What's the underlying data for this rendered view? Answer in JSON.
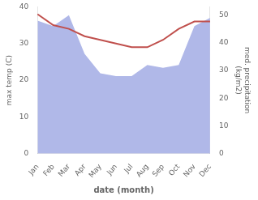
{
  "chart_data": {
    "type": "line",
    "categories": [
      "Jan",
      "Feb",
      "Mar",
      "Apr",
      "May",
      "Jun",
      "Jul",
      "Aug",
      "Sep",
      "Oct",
      "Nov",
      "Dec"
    ],
    "series": [
      {
        "type": "area",
        "color": "#b0b8e8",
        "axis": "y2",
        "values": [
          48,
          46,
          50,
          36,
          29,
          28,
          28,
          32,
          31,
          32,
          46,
          49
        ]
      },
      {
        "type": "line",
        "color": "#c0504d",
        "values": [
          38,
          35,
          34,
          32,
          31,
          30,
          29,
          29,
          31,
          34,
          36,
          36
        ]
      }
    ],
    "xlabel": "date (month)",
    "ylabel": "max temp (C)",
    "y2label": "med. precipitation\n(kg/m2)",
    "ylim": [
      0,
      40
    ],
    "yticks": [
      0,
      10,
      20,
      30,
      40
    ],
    "y2lim": [
      0,
      53
    ],
    "y2ticks": [
      0,
      10,
      20,
      30,
      40,
      50
    ],
    "grid": false
  }
}
